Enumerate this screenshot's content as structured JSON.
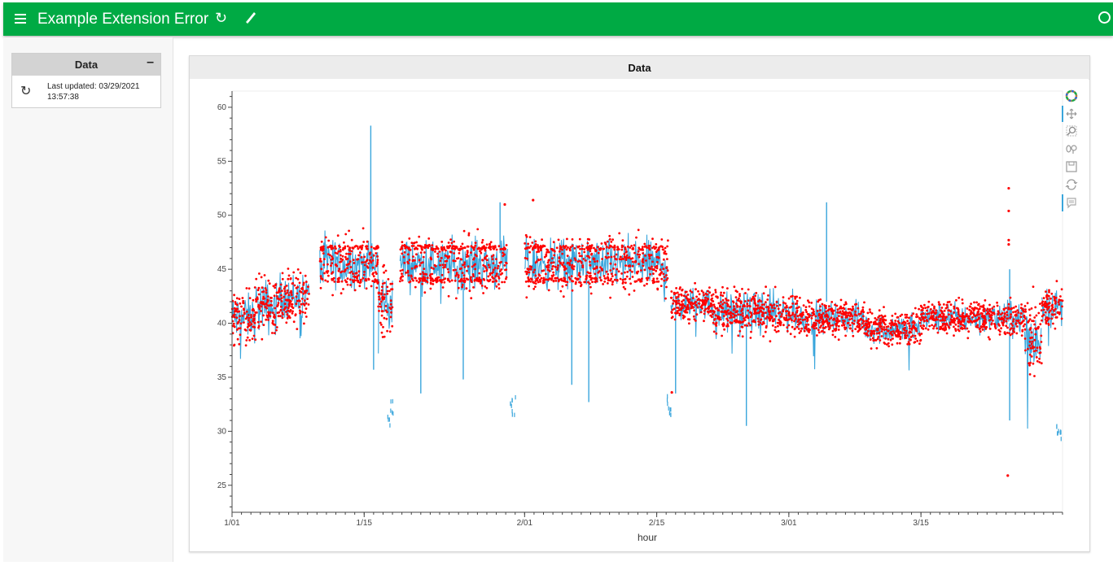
{
  "header": {
    "title": "Example Extension Error"
  },
  "sidebar": {
    "card_title": "Data",
    "collapse_label": "–",
    "last_updated_label": "Last updated:",
    "last_updated_date": "03/29/2021",
    "last_updated_time": "13:57:38"
  },
  "main": {
    "card_title": "Data"
  },
  "colors": {
    "header": "#00aa44",
    "line": "#3aa6dc",
    "points": "#ff0000"
  },
  "chart_data": {
    "type": "scatter",
    "title": "Data",
    "xlabel": "hour",
    "ylabel": "",
    "x_ticks": [
      "1/01",
      "1/15",
      "2/01",
      "2/15",
      "3/01",
      "3/15"
    ],
    "x_tick_days": [
      0,
      14,
      31,
      45,
      59,
      73
    ],
    "xlim_days": [
      0,
      88
    ],
    "ylim": [
      22.5,
      61.5
    ],
    "y_ticks": [
      25,
      30,
      35,
      40,
      45,
      50,
      55,
      60
    ],
    "series": [
      {
        "name": "line",
        "kind": "line"
      },
      {
        "name": "points",
        "kind": "scatter"
      }
    ],
    "regimes": [
      {
        "start": 0,
        "end": 2.5,
        "mean": 40.5,
        "noise": 1.5
      },
      {
        "start": 2.5,
        "end": 4.8,
        "mean": 41.5,
        "noise": 1.8
      },
      {
        "start": 4.8,
        "end": 8.2,
        "mean": 42.5,
        "noise": 1.5
      },
      {
        "start": 9.3,
        "end": 15.5,
        "mean": 45.5,
        "noise": 1.6
      },
      {
        "start": 15.5,
        "end": 17.0,
        "mean": 42.0,
        "noise": 2.0
      },
      {
        "start": 17.8,
        "end": 29.2,
        "mean": 45.5,
        "noise": 1.6
      },
      {
        "start": 31.0,
        "end": 46.2,
        "mean": 45.5,
        "noise": 1.6
      },
      {
        "start": 46.5,
        "end": 51.0,
        "mean": 41.8,
        "noise": 1.0
      },
      {
        "start": 51.0,
        "end": 60.0,
        "mean": 41.0,
        "noise": 1.3
      },
      {
        "start": 60.0,
        "end": 67.0,
        "mean": 40.5,
        "noise": 1.0
      },
      {
        "start": 67.0,
        "end": 73.0,
        "mean": 39.5,
        "noise": 1.0
      },
      {
        "start": 73.0,
        "end": 84.0,
        "mean": 40.5,
        "noise": 1.0
      },
      {
        "start": 84.0,
        "end": 85.8,
        "mean": 38.5,
        "noise": 2.5
      },
      {
        "start": 85.8,
        "end": 88.0,
        "mean": 41.5,
        "noise": 1.2
      }
    ],
    "spikes": [
      {
        "day": 14.7,
        "from": 45.0,
        "to": 58.3
      },
      {
        "day": 15.0,
        "from": 44.0,
        "to": 35.7
      },
      {
        "day": 20.0,
        "from": 44.0,
        "to": 33.5
      },
      {
        "day": 24.5,
        "from": 44.0,
        "to": 34.8
      },
      {
        "day": 28.4,
        "from": 46.5,
        "to": 51.2
      },
      {
        "day": 36.0,
        "from": 44.0,
        "to": 34.3
      },
      {
        "day": 37.8,
        "from": 44.0,
        "to": 32.7
      },
      {
        "day": 54.5,
        "from": 40.0,
        "to": 30.5
      },
      {
        "day": 63.0,
        "from": 42.0,
        "to": 51.2
      },
      {
        "day": 82.4,
        "from": 40.0,
        "to": 31.0
      },
      {
        "day": 82.4,
        "from": 41.0,
        "to": 45.0
      },
      {
        "day": 47.0,
        "from": 42.0,
        "to": 33.5
      }
    ],
    "outliers": [
      {
        "day": 82.3,
        "value": 52.5
      },
      {
        "day": 82.3,
        "value": 50.4
      },
      {
        "day": 82.3,
        "value": 47.7
      },
      {
        "day": 82.3,
        "value": 47.3
      },
      {
        "day": 82.2,
        "value": 25.9
      },
      {
        "day": 31.9,
        "value": 51.4
      },
      {
        "day": 28.9,
        "value": 51.0
      },
      {
        "day": 46.6,
        "value": 33.6
      }
    ],
    "low_clusters": [
      {
        "day": 16.8,
        "low": 30.7,
        "high": 33.3
      },
      {
        "day": 29.8,
        "low": 31.5,
        "high": 34.4
      },
      {
        "day": 46.3,
        "low": 31.6,
        "high": 33.6
      },
      {
        "day": 87.6,
        "low": 29.4,
        "high": 30.7
      }
    ]
  }
}
